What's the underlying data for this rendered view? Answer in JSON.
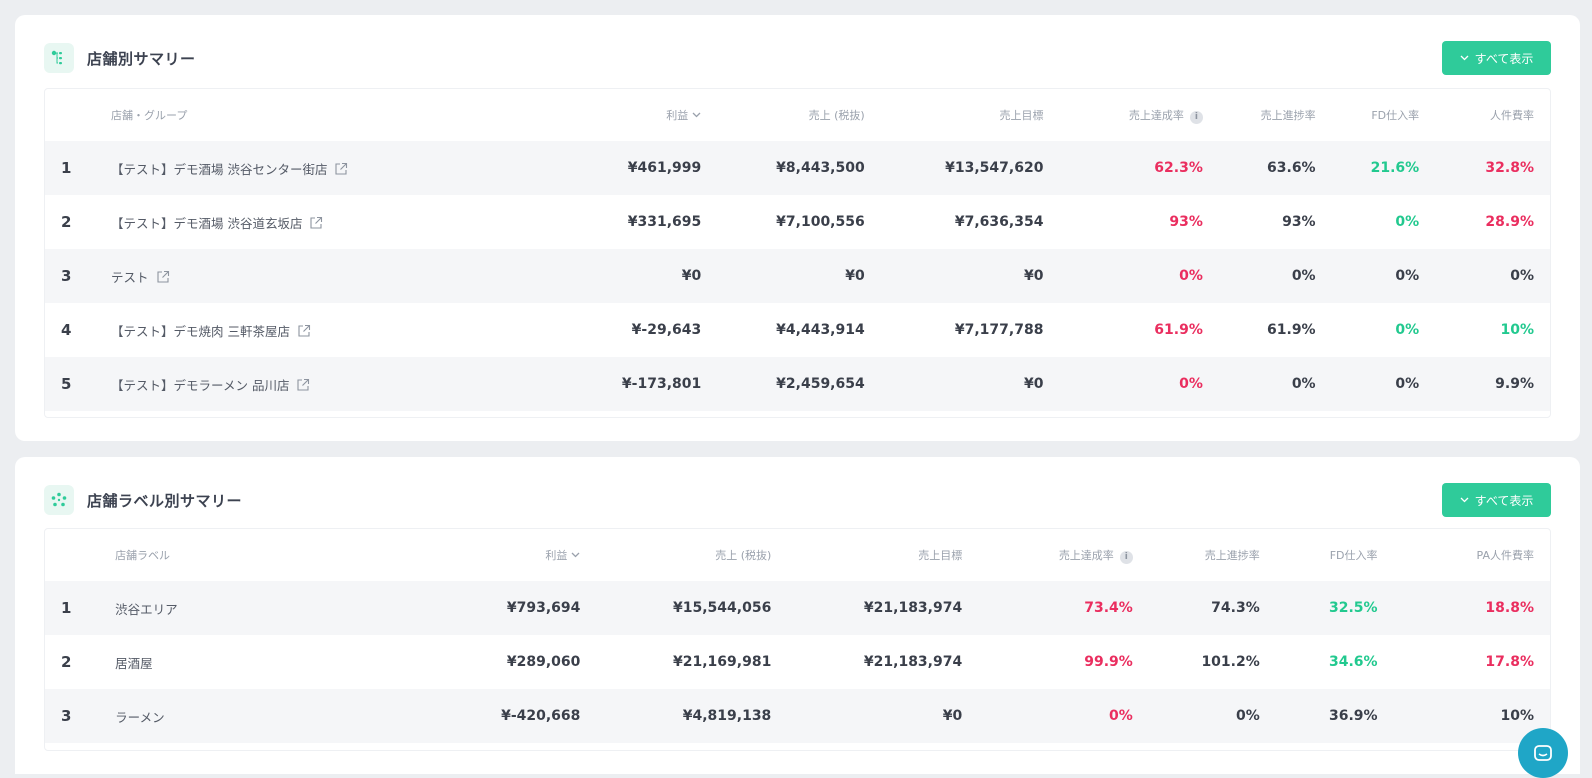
{
  "store_summary": {
    "title": "店舗別サマリー",
    "show_all_label": "すべて表示",
    "columns": {
      "name": "店舗・グループ",
      "profit": "利益",
      "sales": "売上 (税抜)",
      "target": "売上目標",
      "achievement": "売上達成率",
      "progress": "売上進捗率",
      "fd": "FD仕入率",
      "labor": "人件費率"
    },
    "rows": [
      {
        "idx": "1",
        "name": "【テスト】デモ酒場 渋谷センター街店",
        "profit": "¥461,999",
        "sales": "¥8,443,500",
        "target": "¥13,547,620",
        "achievement": "62.3%",
        "progress": "63.6%",
        "fd": "21.6%",
        "labor": "32.8%"
      },
      {
        "idx": "2",
        "name": "【テスト】デモ酒場 渋谷道玄坂店",
        "profit": "¥331,695",
        "sales": "¥7,100,556",
        "target": "¥7,636,354",
        "achievement": "93%",
        "progress": "93%",
        "fd": "0%",
        "labor": "28.9%"
      },
      {
        "idx": "3",
        "name": "テスト",
        "profit": "¥0",
        "sales": "¥0",
        "target": "¥0",
        "achievement": "0%",
        "progress": "0%",
        "fd": "0%",
        "labor": "0%"
      },
      {
        "idx": "4",
        "name": "【テスト】デモ焼肉 三軒茶屋店",
        "profit": "¥-29,643",
        "sales": "¥4,443,914",
        "target": "¥7,177,788",
        "achievement": "61.9%",
        "progress": "61.9%",
        "fd": "0%",
        "labor": "10%"
      },
      {
        "idx": "5",
        "name": "【テスト】デモラーメン 品川店",
        "profit": "¥-173,801",
        "sales": "¥2,459,654",
        "target": "¥0",
        "achievement": "0%",
        "progress": "0%",
        "fd": "0%",
        "labor": "9.9%"
      }
    ]
  },
  "label_summary": {
    "title": "店舗ラベル別サマリー",
    "show_all_label": "すべて表示",
    "columns": {
      "name": "店舗ラベル",
      "profit": "利益",
      "sales": "売上 (税抜)",
      "target": "売上目標",
      "achievement": "売上達成率",
      "progress": "売上進捗率",
      "fd": "FD仕入率",
      "labor": "PA人件費率"
    },
    "rows": [
      {
        "idx": "1",
        "name": "渋谷エリア",
        "profit": "¥793,694",
        "sales": "¥15,544,056",
        "target": "¥21,183,974",
        "achievement": "73.4%",
        "progress": "74.3%",
        "fd": "32.5%",
        "labor": "18.8%"
      },
      {
        "idx": "2",
        "name": "居酒屋",
        "profit": "¥289,060",
        "sales": "¥21,169,981",
        "target": "¥21,183,974",
        "achievement": "99.9%",
        "progress": "101.2%",
        "fd": "34.6%",
        "labor": "17.8%"
      },
      {
        "idx": "3",
        "name": "ラーメン",
        "profit": "¥-420,668",
        "sales": "¥4,819,138",
        "target": "¥0",
        "achievement": "0%",
        "progress": "0%",
        "fd": "36.9%",
        "labor": "10%"
      }
    ]
  },
  "colors": {
    "accent": "#2fcb9a",
    "negative": "#ea2e5f",
    "positive": "#22c98f",
    "row_shade": "#f5f6f8"
  }
}
